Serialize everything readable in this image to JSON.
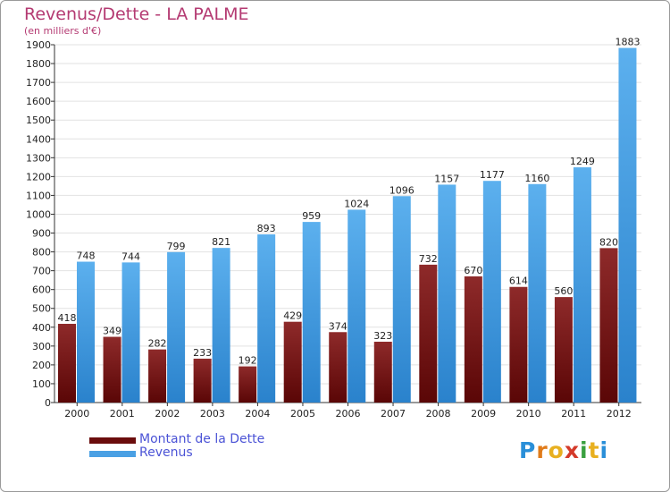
{
  "header": {
    "title": "Revenus/Dette - LA PALME",
    "subtitle": "(en milliers d'€)"
  },
  "chart_data": {
    "type": "bar",
    "title": "Revenus/Dette - LA PALME",
    "subtitle": "(en milliers d'€)",
    "categories": [
      "2000",
      "2001",
      "2002",
      "2003",
      "2004",
      "2005",
      "2006",
      "2007",
      "2008",
      "2009",
      "2010",
      "2011",
      "2012"
    ],
    "series": [
      {
        "name": "Montant de la Dette",
        "values": [
          418,
          349,
          282,
          233,
          192,
          429,
          374,
          323,
          732,
          670,
          614,
          560,
          820
        ],
        "color": "#7a1a1a"
      },
      {
        "name": "Revenus",
        "values": [
          748,
          744,
          799,
          821,
          893,
          959,
          1024,
          1096,
          1157,
          1177,
          1160,
          1249,
          1883
        ],
        "color": "#4aa0e4"
      }
    ],
    "ylim": [
      0,
      1900
    ],
    "yticks": [
      0,
      100,
      200,
      300,
      400,
      500,
      600,
      700,
      800,
      900,
      1000,
      1100,
      1200,
      1300,
      1400,
      1500,
      1600,
      1700,
      1800,
      1900
    ],
    "grid": true,
    "legend_position": "bottom-left"
  },
  "legend": {
    "items": [
      {
        "label": "Montant de la Dette",
        "color": "#6b0d0d"
      },
      {
        "label": "Revenus",
        "color": "#4aa0e4"
      }
    ]
  },
  "logo": {
    "letters": [
      "P",
      "r",
      "o",
      "x",
      "i",
      "t",
      "i"
    ],
    "colors": [
      "#2a8fd8",
      "#e07b1a",
      "#e8b020",
      "#d43a2a",
      "#3aa040",
      "#e8b020",
      "#2a8fd8"
    ]
  }
}
